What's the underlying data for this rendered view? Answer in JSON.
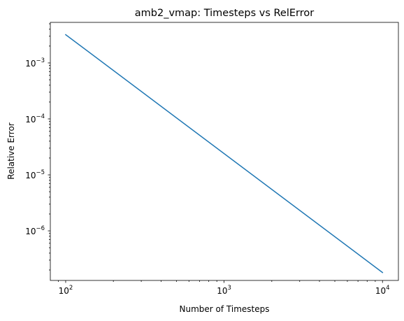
{
  "chart_data": {
    "type": "line",
    "title": "amb2_vmap: Timesteps vs RelError",
    "xlabel": "Number of Timesteps",
    "ylabel": "Relative Error",
    "xscale": "log",
    "yscale": "log",
    "xlim": [
      80,
      12600
    ],
    "ylim": [
      1.3e-07,
      0.0053
    ],
    "grid": false,
    "x_ticks": [
      {
        "value": 100,
        "base": "10",
        "exp": "2"
      },
      {
        "value": 1000,
        "base": "10",
        "exp": "3"
      },
      {
        "value": 10000,
        "base": "10",
        "exp": "4"
      }
    ],
    "y_ticks": [
      {
        "value": 1e-06,
        "base": "10",
        "exp": "−6"
      },
      {
        "value": 1e-05,
        "base": "10",
        "exp": "−5"
      },
      {
        "value": 0.0001,
        "base": "10",
        "exp": "−4"
      },
      {
        "value": 0.001,
        "base": "10",
        "exp": "−3"
      }
    ],
    "series": [
      {
        "color": "#1f77b4",
        "x": [
          100,
          10000
        ],
        "y": [
          0.0032,
          1.8e-07
        ]
      }
    ]
  }
}
